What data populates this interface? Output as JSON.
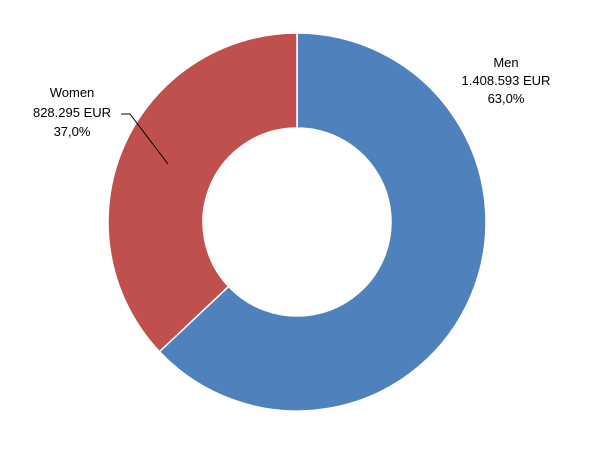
{
  "chart_data": {
    "type": "pie",
    "variant": "doughnut",
    "start_angle_deg": 0,
    "direction": "clockwise",
    "slices": [
      {
        "name": "Men",
        "value": 1408593,
        "percent": 63.0,
        "value_label": "1.408.593 EUR",
        "percent_label": "63,0%",
        "color": "#4F81BD"
      },
      {
        "name": "Women",
        "value": 828295,
        "percent": 37.0,
        "value_label": "828.295 EUR",
        "percent_label": "37,0%",
        "color": "#C0504D"
      }
    ],
    "legend": "none",
    "leader_line_color": "#000000",
    "slice_border_color": "#ffffff"
  }
}
